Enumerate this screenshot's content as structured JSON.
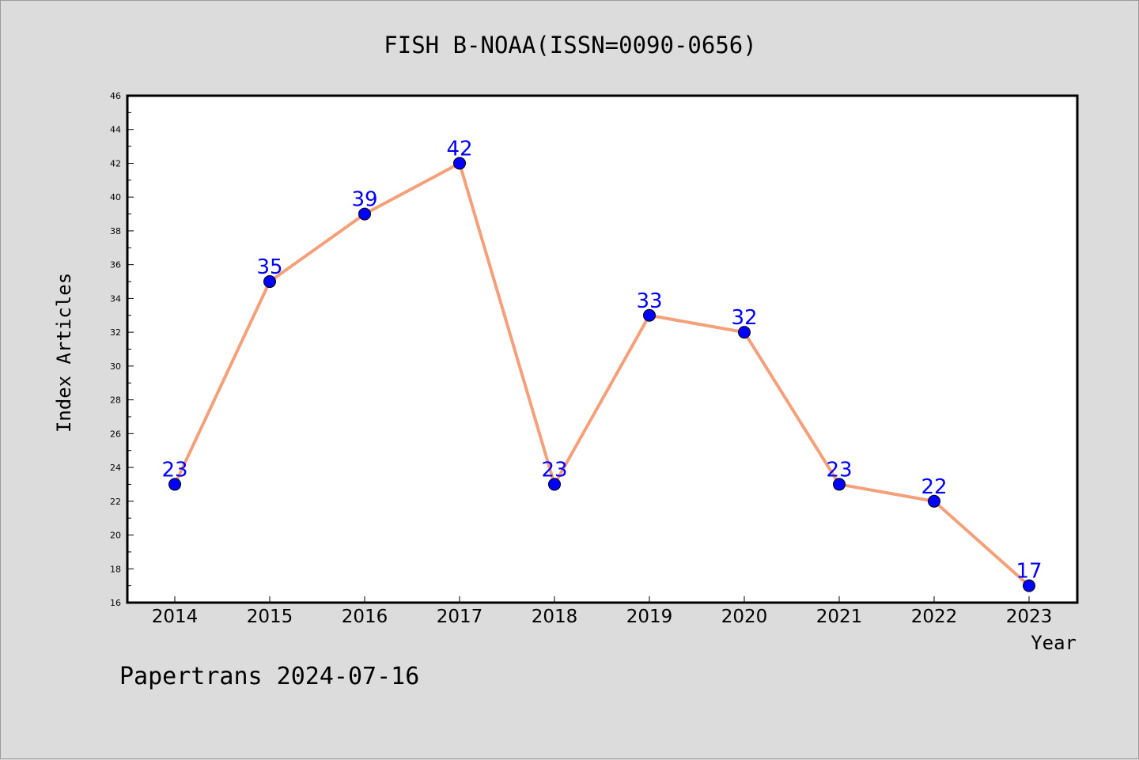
{
  "chart_data": {
    "type": "line",
    "title": "FISH B-NOAA(ISSN=0090-0656)",
    "xlabel": "Year",
    "ylabel": "Index Articles",
    "categories": [
      "2014",
      "2015",
      "2016",
      "2017",
      "2018",
      "2019",
      "2020",
      "2021",
      "2022",
      "2023"
    ],
    "values": [
      23,
      35,
      39,
      42,
      23,
      33,
      32,
      23,
      22,
      17
    ],
    "ylim": [
      16,
      46
    ],
    "yticks": [
      16,
      18,
      20,
      22,
      24,
      26,
      28,
      30,
      32,
      34,
      36,
      38,
      40,
      42,
      44,
      46
    ],
    "grid": false,
    "line_color": "#f4a07a",
    "marker_color": "#0000ff",
    "data_label_color": "#0000ff"
  },
  "footer": {
    "text": "Papertrans 2024-07-16"
  }
}
